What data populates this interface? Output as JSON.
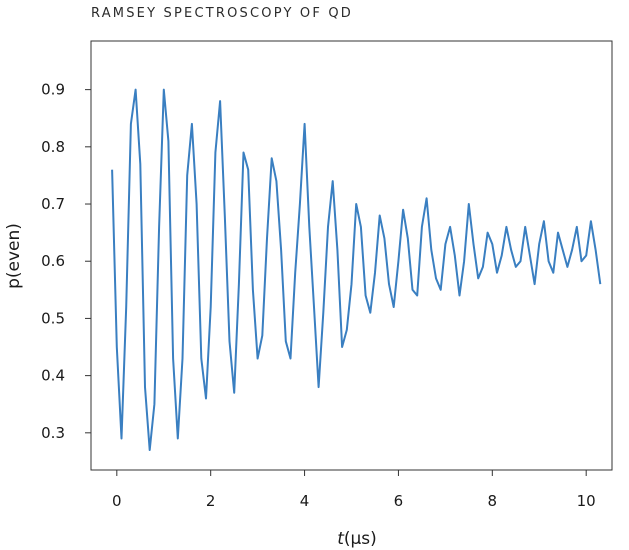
{
  "chart_data": {
    "type": "line",
    "title": "RAMSEY SPECTROSCOPY OF QD",
    "xlabel_var": "t",
    "xlabel_unit": "(µs)",
    "ylabel": "p(even)",
    "xlim": [
      -0.55,
      10.55
    ],
    "ylim": [
      0.235,
      0.985
    ],
    "xticks": [
      0,
      2,
      4,
      6,
      8,
      10
    ],
    "yticks": [
      0.3,
      0.4,
      0.5,
      0.6,
      0.7,
      0.8,
      0.9
    ],
    "grid": false,
    "legend": "none",
    "line_color": "#3a7fc1",
    "series": [
      {
        "x": [
          -0.1,
          0.0,
          0.1,
          0.2,
          0.3,
          0.4,
          0.5,
          0.6,
          0.7,
          0.8,
          0.9,
          1.0,
          1.1,
          1.2,
          1.3,
          1.4,
          1.5,
          1.6,
          1.7,
          1.8,
          1.9,
          2.0,
          2.1,
          2.2,
          2.3,
          2.4,
          2.5,
          2.6,
          2.7,
          2.8,
          2.9,
          3.0,
          3.1,
          3.2,
          3.3,
          3.4,
          3.5,
          3.6,
          3.7,
          3.8,
          3.9,
          4.0,
          4.1,
          4.2,
          4.3,
          4.4,
          4.5,
          4.6,
          4.7,
          4.8,
          4.9,
          5.0,
          5.1,
          5.2,
          5.3,
          5.4,
          5.5,
          5.6,
          5.7,
          5.8,
          5.9,
          6.0,
          6.1,
          6.2,
          6.3,
          6.4,
          6.5,
          6.6,
          6.7,
          6.8,
          6.9,
          7.0,
          7.1,
          7.2,
          7.3,
          7.4,
          7.5,
          7.6,
          7.7,
          7.8,
          7.9,
          8.0,
          8.1,
          8.2,
          8.3,
          8.4,
          8.5,
          8.6,
          8.7,
          8.8,
          8.9,
          9.0,
          9.1,
          9.2,
          9.3,
          9.4,
          9.5,
          9.6,
          9.7,
          9.8,
          9.9,
          10.0,
          10.1,
          10.2,
          10.3
        ],
        "y": [
          0.76,
          0.45,
          0.29,
          0.52,
          0.84,
          0.9,
          0.77,
          0.38,
          0.27,
          0.35,
          0.66,
          0.9,
          0.81,
          0.43,
          0.29,
          0.43,
          0.75,
          0.84,
          0.7,
          0.43,
          0.36,
          0.52,
          0.79,
          0.88,
          0.68,
          0.46,
          0.37,
          0.56,
          0.79,
          0.76,
          0.55,
          0.43,
          0.47,
          0.64,
          0.78,
          0.74,
          0.62,
          0.46,
          0.43,
          0.58,
          0.7,
          0.84,
          0.66,
          0.52,
          0.38,
          0.51,
          0.66,
          0.74,
          0.62,
          0.45,
          0.48,
          0.56,
          0.7,
          0.66,
          0.54,
          0.51,
          0.58,
          0.68,
          0.64,
          0.56,
          0.52,
          0.6,
          0.69,
          0.64,
          0.55,
          0.54,
          0.66,
          0.71,
          0.62,
          0.57,
          0.55,
          0.63,
          0.66,
          0.61,
          0.54,
          0.6,
          0.7,
          0.63,
          0.57,
          0.59,
          0.65,
          0.63,
          0.58,
          0.61,
          0.66,
          0.62,
          0.59,
          0.6,
          0.66,
          0.61,
          0.56,
          0.63,
          0.67,
          0.6,
          0.58,
          0.65,
          0.62,
          0.59,
          0.62,
          0.66,
          0.6,
          0.61,
          0.67,
          0.62,
          0.56
        ]
      }
    ]
  }
}
